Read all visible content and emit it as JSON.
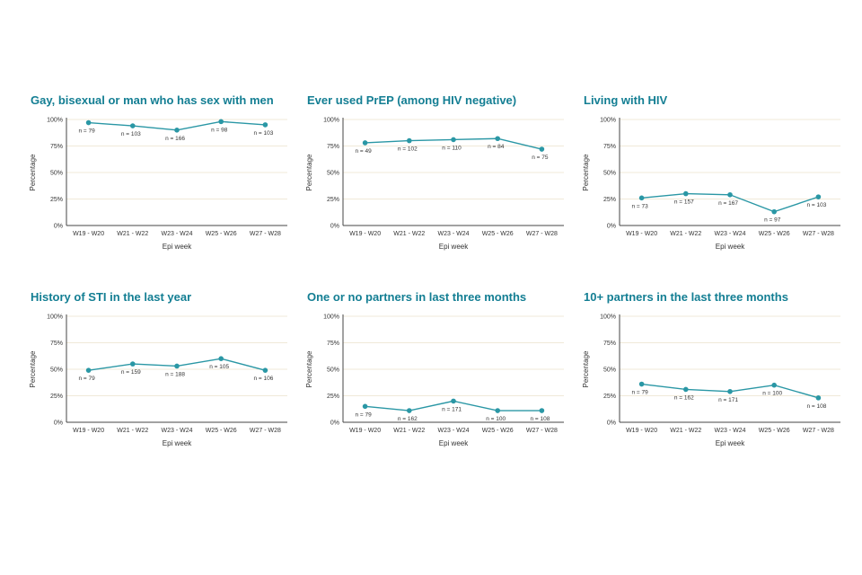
{
  "colors": {
    "accent": "#137e93",
    "line": "#2a97a5",
    "grid": "#f0e9d8",
    "axis": "#444444",
    "n_label": "#c2c2c2",
    "tick_text": "#333333"
  },
  "chart_data": [
    {
      "type": "line",
      "title": "Gay, bisexual or man who has sex with men",
      "categories": [
        "W19 - W20",
        "W21 - W22",
        "W23 - W24",
        "W25 - W26",
        "W27 - W28"
      ],
      "values": [
        97,
        94,
        90,
        98,
        95
      ],
      "n_labels": [
        "n = 79",
        "n = 103",
        "n = 166",
        "n = 98",
        "n = 103"
      ],
      "xlabel": "Epi week",
      "ylabel": "Percentage",
      "yticks": [
        "0%",
        "25%",
        "50%",
        "75%",
        "100%"
      ],
      "ylim": [
        0,
        100
      ]
    },
    {
      "type": "line",
      "title": "Ever used PrEP (among HIV negative)",
      "categories": [
        "W19 - W20",
        "W21 - W22",
        "W23 - W24",
        "W25 - W26",
        "W27 - W28"
      ],
      "values": [
        78,
        80,
        81,
        82,
        72
      ],
      "n_labels": [
        "n = 49",
        "n = 102",
        "n = 110",
        "n = 84",
        "n = 75"
      ],
      "xlabel": "Epi week",
      "ylabel": "Percentage",
      "yticks": [
        "0%",
        "25%",
        "50%",
        "75%",
        "100%"
      ],
      "ylim": [
        0,
        100
      ]
    },
    {
      "type": "line",
      "title": "Living with HIV",
      "categories": [
        "W19 - W20",
        "W21 - W22",
        "W23 - W24",
        "W25 - W26",
        "W27 - W28"
      ],
      "values": [
        26,
        30,
        29,
        13,
        27
      ],
      "n_labels": [
        "n = 73",
        "n = 157",
        "n = 167",
        "n = 97",
        "n = 103"
      ],
      "xlabel": "Epi week",
      "ylabel": "Percentage",
      "yticks": [
        "0%",
        "25%",
        "50%",
        "75%",
        "100%"
      ],
      "ylim": [
        0,
        100
      ]
    },
    {
      "type": "line",
      "title": "History of STI in the last year",
      "categories": [
        "W19 - W20",
        "W21 - W22",
        "W23 - W24",
        "W25 - W26",
        "W27 - W28"
      ],
      "values": [
        49,
        55,
        53,
        60,
        49
      ],
      "n_labels": [
        "n = 79",
        "n = 159",
        "n = 188",
        "n = 105",
        "n = 106"
      ],
      "xlabel": "Epi week",
      "ylabel": "Percentage",
      "yticks": [
        "0%",
        "25%",
        "50%",
        "75%",
        "100%"
      ],
      "ylim": [
        0,
        100
      ]
    },
    {
      "type": "line",
      "title": "One or no partners in last three months",
      "categories": [
        "W19 - W20",
        "W21 - W22",
        "W23 - W24",
        "W25 - W26",
        "W27 - W28"
      ],
      "values": [
        15,
        11,
        20,
        11,
        11
      ],
      "n_labels": [
        "n = 79",
        "n = 162",
        "n = 171",
        "n = 100",
        "n = 108"
      ],
      "xlabel": "Epi week",
      "ylabel": "Percentage",
      "yticks": [
        "0%",
        "25%",
        "50%",
        "75%",
        "100%"
      ],
      "ylim": [
        0,
        100
      ]
    },
    {
      "type": "line",
      "title": "10+ partners in the last three months",
      "categories": [
        "W19 - W20",
        "W21 - W22",
        "W23 - W24",
        "W25 - W26",
        "W27 - W28"
      ],
      "values": [
        36,
        31,
        29,
        35,
        23
      ],
      "n_labels": [
        "n = 79",
        "n = 162",
        "n = 171",
        "n = 100",
        "n = 108"
      ],
      "xlabel": "Epi week",
      "ylabel": "Percentage",
      "yticks": [
        "0%",
        "25%",
        "50%",
        "75%",
        "100%"
      ],
      "ylim": [
        0,
        100
      ]
    }
  ]
}
